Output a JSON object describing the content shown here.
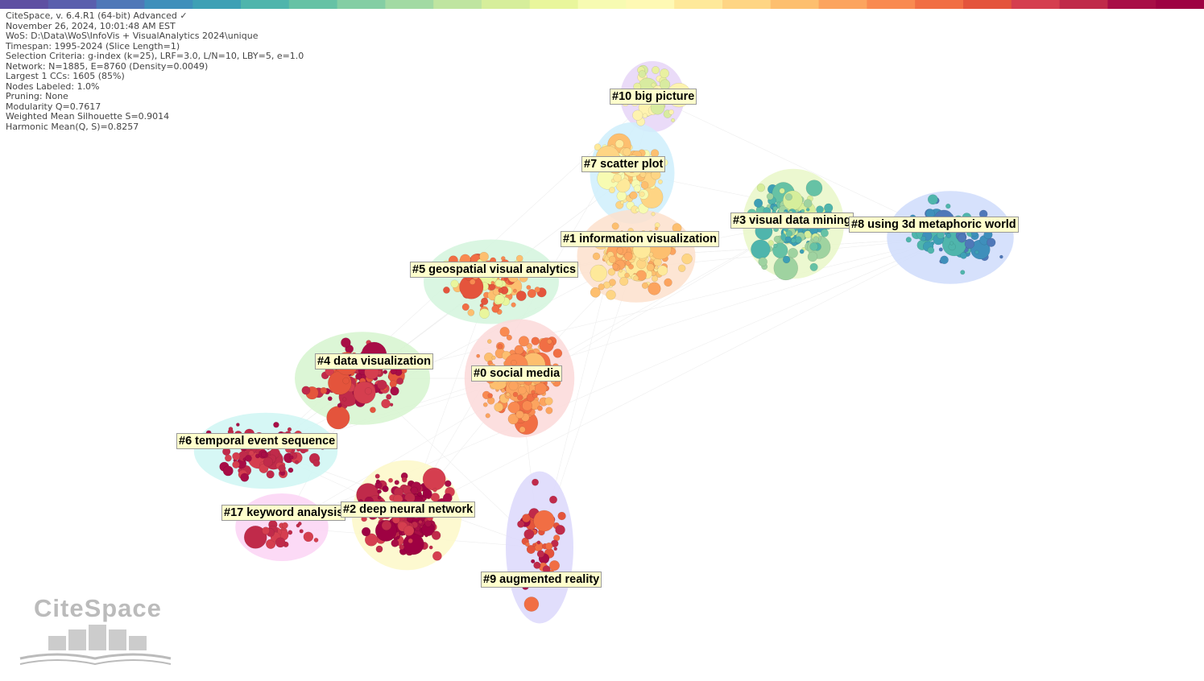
{
  "header": {
    "lines": [
      "CiteSpace, v. 6.4.R1 (64-bit) Advanced ✓",
      "November 26, 2024, 10:01:48 AM EST",
      "WoS: D:\\Data\\WoS\\InfoVis + VisualAnalytics 2024\\unique",
      "Timespan: 1995-2024 (Slice Length=1)",
      "Selection Criteria: g-index (k=25), LRF=3.0, L/N=10, LBY=5, e=1.0",
      "Network: N=1885, E=8760 (Density=0.0049)",
      "Largest 1 CCs: 1605 (85%)",
      "Nodes Labeled: 1.0%",
      "Pruning: None",
      "Modularity Q=0.7617",
      "Weighted Mean Silhouette S=0.9014",
      "Harmonic Mean(Q, S)=0.8257"
    ]
  },
  "clusters": [
    {
      "label": "#10 big picture"
    },
    {
      "label": "#7 scatter plot"
    },
    {
      "label": "#3 visual data mining"
    },
    {
      "label": "#8 using 3d metaphoric world"
    },
    {
      "label": "#1 information visualization"
    },
    {
      "label": "#5 geospatial visual analytics"
    },
    {
      "label": "#4 data visualization"
    },
    {
      "label": "#0 social media"
    },
    {
      "label": "#6 temporal event sequence"
    },
    {
      "label": "#17 keyword analysis"
    },
    {
      "label": "#2 deep neural network"
    },
    {
      "label": "#9 augmented reality"
    }
  ],
  "logo": {
    "text": "CiteSpace"
  }
}
